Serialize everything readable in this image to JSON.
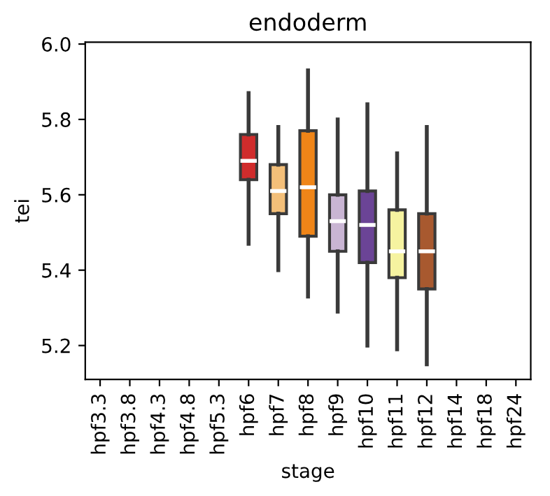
{
  "chart_data": {
    "type": "box",
    "title": "endoderm",
    "xlabel": "stage",
    "ylabel": "tei",
    "categories": [
      "hpf3.3",
      "hpf3.8",
      "hpf4.3",
      "hpf4.8",
      "hpf5.3",
      "hpf6",
      "hpf7",
      "hpf8",
      "hpf9",
      "hpf10",
      "hpf11",
      "hpf12",
      "hpf14",
      "hpf18",
      "hpf24"
    ],
    "boxes": [
      null,
      null,
      null,
      null,
      null,
      {
        "low": 5.47,
        "q1": 5.64,
        "median": 5.69,
        "q3": 5.76,
        "high": 5.87
      },
      {
        "low": 5.4,
        "q1": 5.55,
        "median": 5.61,
        "q3": 5.68,
        "high": 5.78
      },
      {
        "low": 5.33,
        "q1": 5.49,
        "median": 5.62,
        "q3": 5.77,
        "high": 5.93
      },
      {
        "low": 5.29,
        "q1": 5.45,
        "median": 5.53,
        "q3": 5.6,
        "high": 5.8
      },
      {
        "low": 5.2,
        "q1": 5.42,
        "median": 5.52,
        "q3": 5.61,
        "high": 5.84
      },
      {
        "low": 5.19,
        "q1": 5.38,
        "median": 5.45,
        "q3": 5.56,
        "high": 5.71
      },
      {
        "low": 5.15,
        "q1": 5.35,
        "median": 5.45,
        "q3": 5.55,
        "high": 5.78
      },
      null,
      null,
      null
    ],
    "colors": [
      null,
      null,
      null,
      null,
      null,
      "#d02c2c",
      "#f3bf79",
      "#ef8518",
      "#c9b5d3",
      "#6b4496",
      "#f6f3a0",
      "#a8592f",
      null,
      null,
      null
    ],
    "ylim": [
      5.11,
      6.005
    ],
    "yticks": [
      5.2,
      5.4,
      5.6,
      5.8,
      {
        "value": 6,
        "label": "6.0"
      }
    ],
    "grid": false,
    "legend": false
  }
}
